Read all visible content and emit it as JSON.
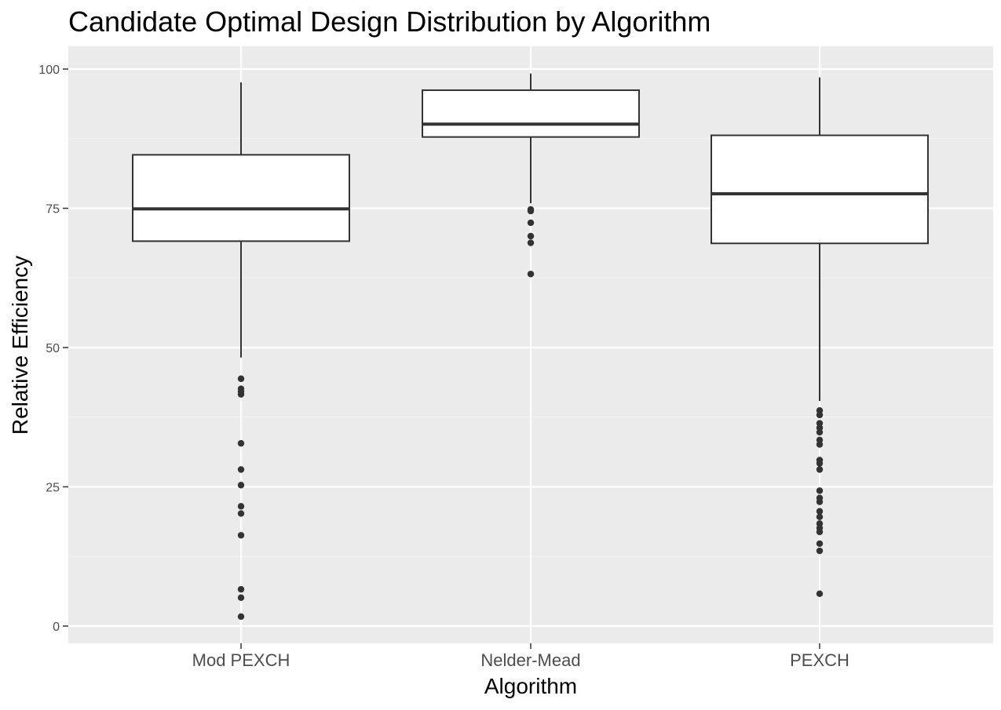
{
  "chart_data": {
    "type": "box",
    "title": "Candidate Optimal Design Distribution by Algorithm",
    "xlabel": "Algorithm",
    "ylabel": "Relative Efficiency",
    "ylim": [
      -3,
      104
    ],
    "yticks": [
      0,
      25,
      50,
      75,
      100
    ],
    "categories": [
      "Mod PEXCH",
      "Nelder-Mead",
      "PEXCH"
    ],
    "grid": true,
    "legend": "none",
    "colors": {
      "panel": "#EBEBEB",
      "grid_major": "#FFFFFF",
      "grid_minor": "#F5F5F5",
      "box_fill": "#FFFFFF",
      "box_stroke": "#333333",
      "point": "#333333",
      "axis_text": "#4D4D4D",
      "title_text": "#000000"
    },
    "series": [
      {
        "category": "Mod PEXCH",
        "whisker_low": 48.2,
        "q1": 69.1,
        "median": 74.9,
        "q3": 84.6,
        "whisker_high": 97.6,
        "outliers": [
          44.4,
          42.6,
          42.1,
          41.6,
          32.8,
          28.1,
          25.3,
          21.5,
          20.2,
          16.3,
          6.6,
          5.1,
          1.7
        ]
      },
      {
        "category": "Nelder-Mead",
        "whisker_low": 75.9,
        "q1": 87.8,
        "median": 90.1,
        "q3": 96.2,
        "whisker_high": 99.2,
        "outliers": [
          74.8,
          74.5,
          72.4,
          70.0,
          68.8,
          63.2
        ]
      },
      {
        "category": "PEXCH",
        "whisker_low": 40.4,
        "q1": 68.7,
        "median": 77.6,
        "q3": 88.1,
        "whisker_high": 98.5,
        "outliers": [
          38.7,
          37.9,
          36.4,
          35.6,
          34.8,
          33.4,
          32.6,
          29.8,
          29.2,
          28.1,
          24.3,
          23.0,
          22.3,
          20.6,
          19.6,
          18.4,
          17.6,
          16.9,
          14.8,
          13.5,
          5.8
        ]
      }
    ]
  }
}
